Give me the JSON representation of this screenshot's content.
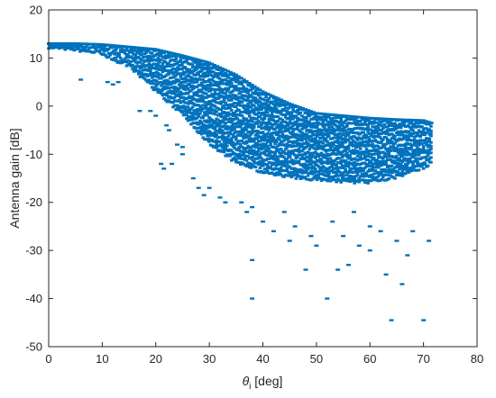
{
  "chart_data": {
    "type": "scatter",
    "title": "",
    "xlabel": "θ",
    "xlabel_subscript": "i",
    "xlabel_unit": " [deg]",
    "ylabel": "Antenna gain [dB]",
    "xlim": [
      0,
      80
    ],
    "ylim": [
      -50,
      20
    ],
    "xticks": [
      "0",
      "10",
      "20",
      "30",
      "40",
      "50",
      "60",
      "70",
      "80"
    ],
    "yticks": [
      "20",
      "10",
      "0",
      "-10",
      "-20",
      "-30",
      "-40",
      "-50"
    ],
    "grid": false,
    "color": "#0072BD",
    "series": [
      {
        "upper_envelope": [
          [
            0,
            13
          ],
          [
            5,
            13
          ],
          [
            10,
            12.8
          ],
          [
            15,
            12.3
          ],
          [
            20,
            11.8
          ],
          [
            25,
            10.5
          ],
          [
            30,
            9
          ],
          [
            33,
            7.5
          ],
          [
            35,
            6.5
          ],
          [
            40,
            3
          ],
          [
            45,
            0.5
          ],
          [
            50,
            -1.5
          ],
          [
            55,
            -2
          ],
          [
            60,
            -2.5
          ],
          [
            65,
            -2.8
          ],
          [
            70,
            -3
          ],
          [
            71.5,
            -3.5
          ]
        ],
        "lower_envelope": [
          [
            0,
            12
          ],
          [
            5,
            11.5
          ],
          [
            10,
            10.5
          ],
          [
            15,
            8
          ],
          [
            20,
            3
          ],
          [
            25,
            -2
          ],
          [
            30,
            -8
          ],
          [
            35,
            -12
          ],
          [
            40,
            -14
          ],
          [
            45,
            -15
          ],
          [
            50,
            -15.5
          ],
          [
            55,
            -16
          ],
          [
            60,
            -16
          ],
          [
            65,
            -15
          ],
          [
            70,
            -13
          ],
          [
            71.5,
            -12
          ]
        ],
        "scattered_points": [
          [
            6,
            5.5
          ],
          [
            11,
            5
          ],
          [
            12,
            4.5
          ],
          [
            13,
            5
          ],
          [
            17,
            -1
          ],
          [
            19,
            -1
          ],
          [
            20,
            -2
          ],
          [
            22,
            -4
          ],
          [
            22.5,
            -5
          ],
          [
            24,
            -8
          ],
          [
            25,
            -8.5
          ],
          [
            21,
            -12
          ],
          [
            21.5,
            -13
          ],
          [
            23,
            -12
          ],
          [
            25,
            -10
          ],
          [
            27,
            -15
          ],
          [
            28,
            -17
          ],
          [
            29,
            -18.5
          ],
          [
            30,
            -17
          ],
          [
            32,
            -19
          ],
          [
            33,
            -20
          ],
          [
            36,
            -20
          ],
          [
            37,
            -22
          ],
          [
            38,
            -21
          ],
          [
            38,
            -32
          ],
          [
            38,
            -40
          ],
          [
            40,
            -24
          ],
          [
            42,
            -26
          ],
          [
            44,
            -22
          ],
          [
            45,
            -28
          ],
          [
            46,
            -25
          ],
          [
            48,
            -34
          ],
          [
            49,
            -27
          ],
          [
            50,
            -29
          ],
          [
            52,
            -40
          ],
          [
            53,
            -24
          ],
          [
            54,
            -34
          ],
          [
            55,
            -27
          ],
          [
            56,
            -33
          ],
          [
            57,
            -22
          ],
          [
            58,
            -29
          ],
          [
            60,
            -25
          ],
          [
            60,
            -30
          ],
          [
            62,
            -26
          ],
          [
            63,
            -35
          ],
          [
            64,
            -44.5
          ],
          [
            65,
            -28
          ],
          [
            66,
            -37
          ],
          [
            67,
            -31
          ],
          [
            68,
            -26
          ],
          [
            70,
            -44.5
          ],
          [
            71,
            -28
          ]
        ]
      }
    ]
  }
}
